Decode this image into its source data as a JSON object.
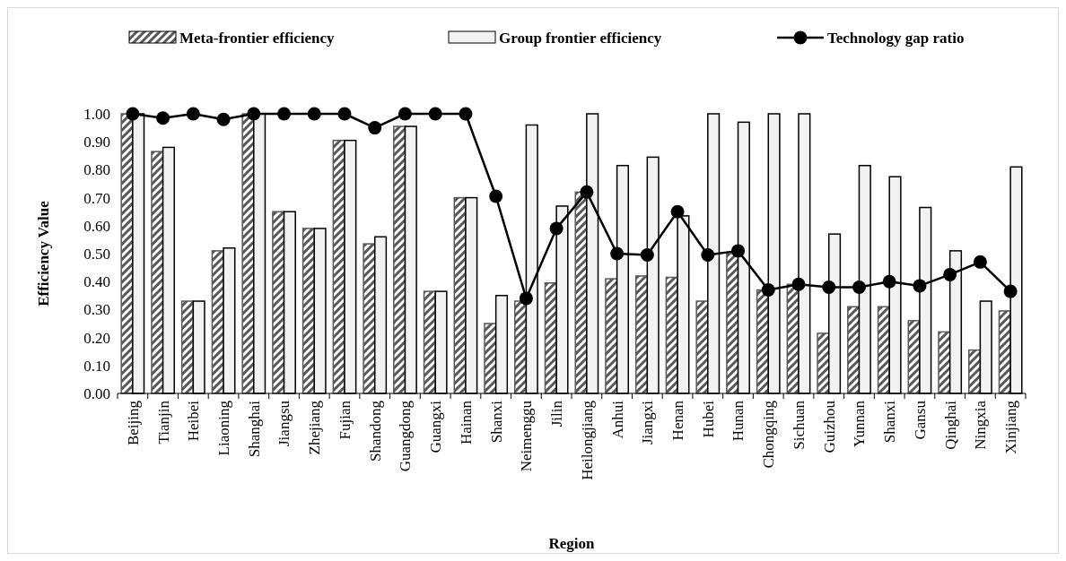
{
  "chart_data": {
    "type": "bar",
    "xlabel": "Region",
    "ylabel": "Efficiency Value",
    "categories": [
      "Beijing",
      "Tianjin",
      "Heibei",
      "Liaoning",
      "Shanghai",
      "Jiangsu",
      "Zhejiang",
      "Fujian",
      "Shandong",
      "Guangdong",
      "Guangxi",
      "Hainan",
      "Shanxi",
      "Neimenggu",
      "Jilin",
      "Heilongjiang",
      "Anhui",
      "Jiangxi",
      "Henan",
      "Hubei",
      "Hunan",
      "Chongqing",
      "Sichuan",
      "Guizhou",
      "Yunnan",
      "Shanxi",
      "Gansu",
      "Qinghai",
      "Ningxia",
      "Xinjiang"
    ],
    "series": [
      {
        "name": "Meta-frontier efficiency",
        "color": "#595959",
        "values": [
          1.0,
          0.865,
          0.33,
          0.51,
          1.0,
          0.65,
          0.59,
          0.905,
          0.535,
          0.955,
          0.365,
          0.7,
          0.25,
          0.33,
          0.395,
          0.72,
          0.41,
          0.42,
          0.415,
          0.33,
          0.5,
          0.37,
          0.39,
          0.215,
          0.31,
          0.31,
          0.26,
          0.22,
          0.155,
          0.295
        ]
      },
      {
        "name": "Group frontier efficiency",
        "color": "#f2f2f2",
        "values": [
          1.0,
          0.88,
          0.33,
          0.52,
          1.0,
          0.65,
          0.59,
          0.905,
          0.56,
          0.955,
          0.365,
          0.7,
          0.35,
          0.96,
          0.67,
          1.0,
          0.815,
          0.845,
          0.635,
          1.0,
          0.97,
          1.0,
          1.0,
          0.57,
          0.815,
          0.775,
          0.665,
          0.51,
          0.33,
          0.81
        ]
      },
      {
        "name": "Technology gap ratio",
        "type": "line",
        "color": "#000000",
        "values": [
          1.0,
          0.985,
          1.0,
          0.98,
          1.0,
          1.0,
          1.0,
          1.0,
          0.95,
          1.0,
          1.0,
          1.0,
          0.705,
          0.34,
          0.59,
          0.72,
          0.5,
          0.495,
          0.65,
          0.495,
          0.51,
          0.37,
          0.39,
          0.38,
          0.38,
          0.4,
          0.385,
          0.425,
          0.47,
          0.365
        ]
      }
    ],
    "ylim": [
      0,
      1
    ],
    "yticks": [
      {
        "value": 0,
        "label": "0.00"
      },
      {
        "value": 0.1,
        "label": "0.10"
      },
      {
        "value": 0.2,
        "label": "0.20"
      },
      {
        "value": 0.3,
        "label": "0.30"
      },
      {
        "value": 0.4,
        "label": "0.40"
      },
      {
        "value": 0.5,
        "label": "0.50"
      },
      {
        "value": 0.6,
        "label": "0.60"
      },
      {
        "value": 0.7,
        "label": "0.70"
      },
      {
        "value": 0.8,
        "label": "0.80"
      },
      {
        "value": 0.9,
        "label": "0.90"
      },
      {
        "value": 1,
        "label": "1.00"
      }
    ],
    "legend": "top",
    "marker": "circle",
    "grid": false
  }
}
